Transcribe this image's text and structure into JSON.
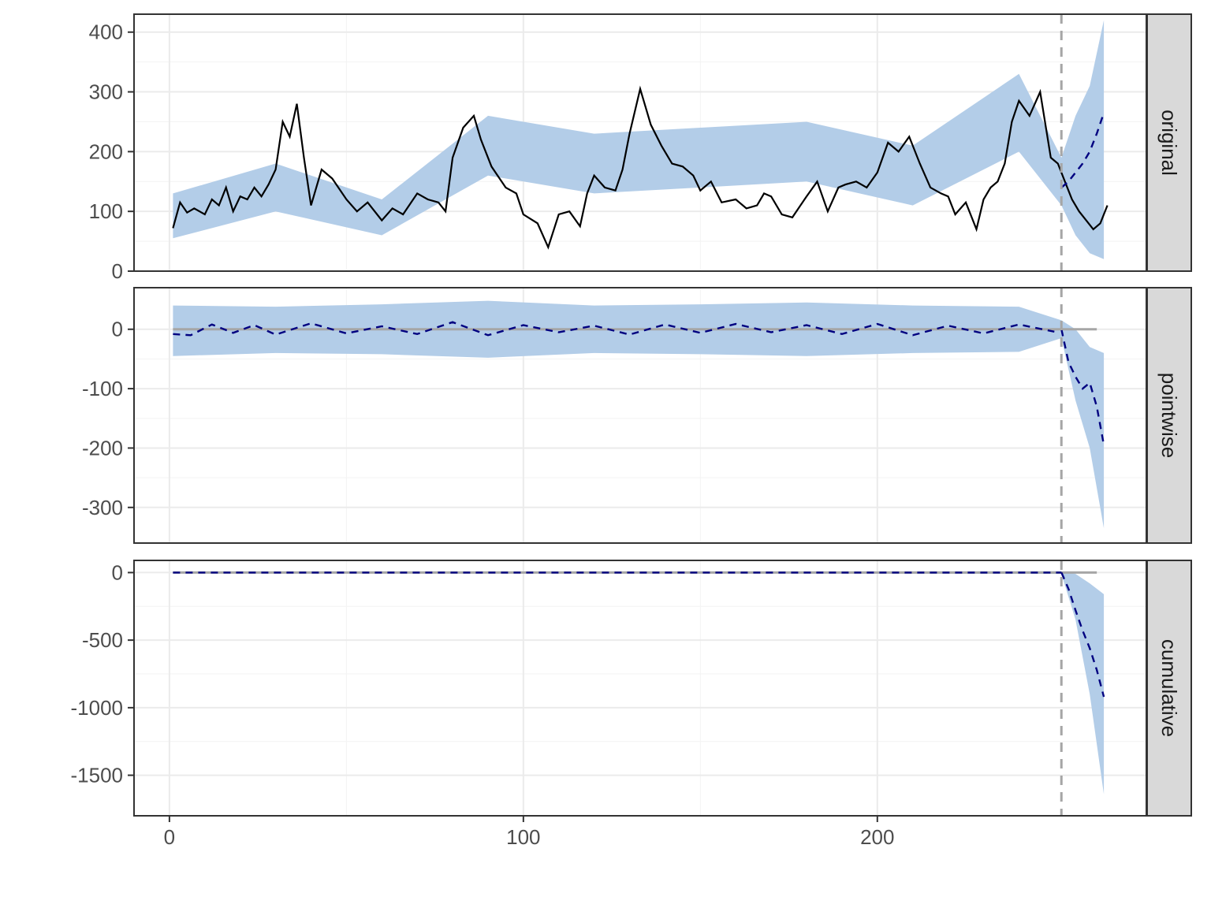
{
  "chart_data": {
    "type": "line",
    "title": "",
    "xlabel": "",
    "ylabel": "",
    "grid": true,
    "intervention_x": 252,
    "x_range": [
      -10,
      276
    ],
    "x_ticks": [
      0,
      100,
      200
    ],
    "colors": {
      "observed": "#000000",
      "predicted": "#000080",
      "band": "#b3cde8",
      "reference": "#a6a6a6",
      "strip_fill": "#d9d9d9",
      "panel_border": "#333333",
      "grid": "#ebebeb"
    },
    "panels": [
      {
        "name": "original",
        "ylim": [
          0,
          430
        ],
        "y_ticks": [
          0,
          100,
          200,
          300,
          400
        ],
        "series": [
          {
            "x": [
              1,
              3,
              5,
              7,
              10,
              12,
              14,
              16,
              18,
              20,
              22,
              24,
              26,
              28,
              30,
              32,
              34,
              36,
              38,
              40,
              43,
              46,
              50,
              53,
              56,
              60,
              63,
              66,
              70,
              73,
              76,
              78,
              80,
              83,
              86,
              88,
              91,
              95,
              98,
              100,
              104,
              107,
              110,
              113,
              116,
              118,
              120,
              123,
              126,
              128,
              130,
              133,
              136,
              139,
              142,
              145,
              148,
              150,
              153,
              156,
              160,
              163,
              166,
              168,
              170,
              173,
              176,
              180,
              183,
              186,
              189,
              191,
              194,
              197,
              200,
              203,
              206,
              209,
              212,
              215,
              218,
              220,
              222,
              225,
              228,
              230,
              232,
              234,
              236,
              238,
              240,
              243,
              246,
              249,
              251,
              253,
              255,
              257,
              259,
              261,
              263,
              265
            ],
            "y": [
              72,
              115,
              98,
              105,
              95,
              120,
              110,
              140,
              100,
              125,
              120,
              140,
              125,
              145,
              170,
              250,
              225,
              280,
              190,
              110,
              170,
              155,
              120,
              100,
              115,
              85,
              105,
              95,
              130,
              120,
              115,
              100,
              190,
              240,
              260,
              220,
              175,
              140,
              130,
              95,
              80,
              40,
              95,
              100,
              75,
              130,
              160,
              140,
              135,
              170,
              230,
              305,
              245,
              210,
              180,
              175,
              160,
              135,
              150,
              115,
              120,
              105,
              110,
              130,
              125,
              95,
              90,
              125,
              150,
              100,
              140,
              145,
              150,
              140,
              165,
              215,
              200,
              225,
              180,
              140,
              130,
              125,
              95,
              115,
              70,
              120,
              140,
              150,
              180,
              250,
              285,
              260,
              300,
              190,
              180,
              150,
              120,
              100,
              85,
              70,
              80,
              110
            ]
          },
          {
            "x": [
              252,
              254,
              256,
              258,
              260,
              262,
              264
            ],
            "y": [
              140,
              150,
              165,
              180,
              200,
              230,
              265
            ]
          }
        ],
        "band": {
          "x": [
            1,
            30,
            60,
            90,
            120,
            150,
            180,
            210,
            240,
            252,
            256,
            260,
            264
          ],
          "lower": [
            55,
            100,
            60,
            160,
            130,
            140,
            150,
            110,
            200,
            110,
            60,
            30,
            20
          ],
          "upper": [
            130,
            180,
            120,
            260,
            230,
            240,
            250,
            210,
            330,
            190,
            260,
            310,
            420
          ]
        }
      },
      {
        "name": "pointwise",
        "ylim": [
          -360,
          70
        ],
        "y_ticks": [
          0,
          -100,
          -200,
          -300
        ],
        "series": [
          {
            "x": [
              1,
              6,
              12,
              18,
              24,
              30,
              40,
              50,
              60,
              70,
              80,
              90,
              100,
              110,
              120,
              130,
              140,
              150,
              160,
              170,
              180,
              190,
              200,
              210,
              220,
              230,
              240,
              250
            ],
            "y": [
              -8,
              -10,
              8,
              -6,
              7,
              -9,
              10,
              -7,
              5,
              -8,
              12,
              -10,
              7,
              -5,
              6,
              -9,
              8,
              -6,
              9,
              -5,
              7,
              -8,
              9,
              -10,
              6,
              -7,
              8,
              -4
            ]
          },
          {
            "x": [
              252,
              254,
              256,
              258,
              260,
              262,
              264
            ],
            "y": [
              0,
              -55,
              -80,
              -100,
              -90,
              -130,
              -195
            ]
          }
        ],
        "band": {
          "x": [
            1,
            30,
            60,
            90,
            120,
            150,
            180,
            210,
            240,
            252,
            256,
            260,
            264
          ],
          "lower": [
            -45,
            -40,
            -42,
            -48,
            -40,
            -42,
            -45,
            -40,
            -38,
            -15,
            -120,
            -200,
            -335
          ],
          "upper": [
            40,
            38,
            42,
            48,
            40,
            42,
            45,
            40,
            38,
            15,
            0,
            -30,
            -40
          ]
        }
      },
      {
        "name": "cumulative",
        "ylim": [
          -1800,
          90
        ],
        "y_ticks": [
          0,
          -500,
          -1000,
          -1500
        ],
        "series": [
          {
            "x": [
              1,
              252
            ],
            "y": [
              0,
              0
            ]
          },
          {
            "x": [
              252,
              254,
              256,
              258,
              260,
              262,
              264
            ],
            "y": [
              0,
              -120,
              -280,
              -430,
              -560,
              -720,
              -920
            ]
          }
        ],
        "band": {
          "x": [
            1,
            252,
            256,
            260,
            264
          ],
          "lower": [
            0,
            -10,
            -350,
            -900,
            -1640
          ],
          "upper": [
            0,
            10,
            -10,
            -80,
            -160
          ]
        }
      }
    ]
  }
}
